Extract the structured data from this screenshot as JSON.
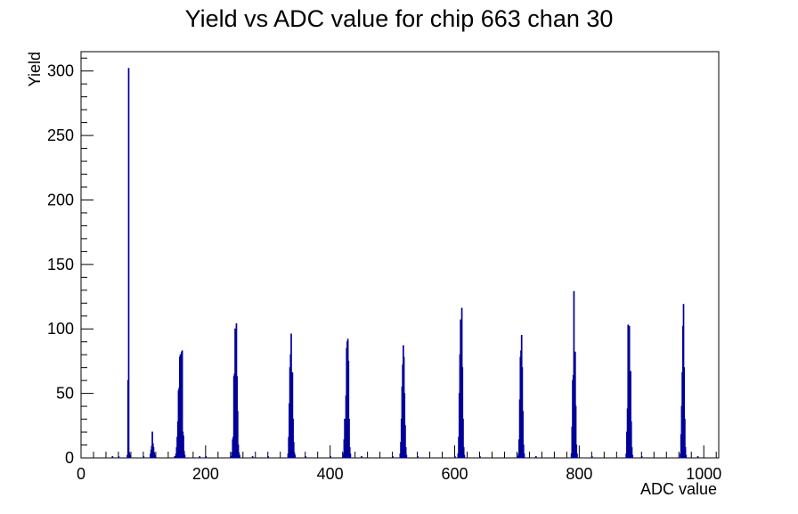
{
  "chart_data": {
    "type": "histogram",
    "title": "Yield vs ADC value for chip 663 chan 30",
    "xlabel": "ADC value",
    "ylabel": "Yield",
    "xlim": [
      0,
      1024
    ],
    "ylim": [
      0,
      315
    ],
    "x_ticks": [
      0,
      200,
      400,
      600,
      800,
      1000
    ],
    "x_tick_labels": [
      "0",
      "200",
      "400",
      "600",
      "800",
      "1000"
    ],
    "y_ticks": [
      0,
      50,
      100,
      150,
      200,
      250,
      300
    ],
    "y_tick_labels": [
      "0",
      "50",
      "100",
      "150",
      "200",
      "250",
      "300"
    ],
    "grid": false,
    "line_color": "#000099",
    "bin_width": 1,
    "bins": [
      [
        50,
        1
      ],
      [
        60,
        1
      ],
      [
        74,
        2
      ],
      [
        75,
        60
      ],
      [
        76,
        302
      ],
      [
        77,
        4
      ],
      [
        78,
        2
      ],
      [
        79,
        1
      ],
      [
        100,
        1
      ],
      [
        111,
        3
      ],
      [
        112,
        6
      ],
      [
        113,
        9
      ],
      [
        114,
        20
      ],
      [
        115,
        11
      ],
      [
        116,
        8
      ],
      [
        117,
        4
      ],
      [
        118,
        2
      ],
      [
        119,
        1
      ],
      [
        150,
        1
      ],
      [
        152,
        3
      ],
      [
        153,
        8
      ],
      [
        154,
        16
      ],
      [
        155,
        28
      ],
      [
        156,
        52
      ],
      [
        157,
        54
      ],
      [
        158,
        78
      ],
      [
        159,
        80
      ],
      [
        160,
        60
      ],
      [
        161,
        82
      ],
      [
        162,
        83
      ],
      [
        163,
        20
      ],
      [
        164,
        17
      ],
      [
        165,
        5
      ],
      [
        166,
        2
      ],
      [
        190,
        1
      ],
      [
        200,
        1
      ],
      [
        240,
        1
      ],
      [
        242,
        4
      ],
      [
        243,
        14
      ],
      [
        244,
        16
      ],
      [
        245,
        63
      ],
      [
        246,
        65
      ],
      [
        247,
        100
      ],
      [
        248,
        70
      ],
      [
        249,
        104
      ],
      [
        250,
        63
      ],
      [
        251,
        36
      ],
      [
        252,
        10
      ],
      [
        253,
        4
      ],
      [
        254,
        2
      ],
      [
        275,
        1
      ],
      [
        300,
        1
      ],
      [
        332,
        3
      ],
      [
        333,
        16
      ],
      [
        334,
        42
      ],
      [
        335,
        70
      ],
      [
        336,
        80
      ],
      [
        337,
        96
      ],
      [
        338,
        60
      ],
      [
        339,
        66
      ],
      [
        340,
        30
      ],
      [
        341,
        12
      ],
      [
        342,
        4
      ],
      [
        343,
        2
      ],
      [
        360,
        1
      ],
      [
        400,
        1
      ],
      [
        421,
        3
      ],
      [
        422,
        14
      ],
      [
        423,
        30
      ],
      [
        424,
        20
      ],
      [
        425,
        48
      ],
      [
        426,
        85
      ],
      [
        427,
        90
      ],
      [
        428,
        92
      ],
      [
        429,
        75
      ],
      [
        430,
        30
      ],
      [
        431,
        8
      ],
      [
        432,
        3
      ],
      [
        450,
        1
      ],
      [
        500,
        1
      ],
      [
        512,
        3
      ],
      [
        513,
        12
      ],
      [
        514,
        30
      ],
      [
        515,
        55
      ],
      [
        516,
        72
      ],
      [
        517,
        87
      ],
      [
        518,
        78
      ],
      [
        519,
        50
      ],
      [
        520,
        25
      ],
      [
        521,
        8
      ],
      [
        522,
        2
      ],
      [
        540,
        1
      ],
      [
        600,
        1
      ],
      [
        605,
        3
      ],
      [
        606,
        16
      ],
      [
        607,
        50
      ],
      [
        608,
        80
      ],
      [
        609,
        107
      ],
      [
        610,
        104
      ],
      [
        611,
        116
      ],
      [
        612,
        70
      ],
      [
        613,
        30
      ],
      [
        614,
        8
      ],
      [
        615,
        2
      ],
      [
        640,
        1
      ],
      [
        700,
        1
      ],
      [
        702,
        3
      ],
      [
        703,
        14
      ],
      [
        704,
        45
      ],
      [
        705,
        78
      ],
      [
        706,
        83
      ],
      [
        707,
        95
      ],
      [
        708,
        70
      ],
      [
        709,
        36
      ],
      [
        710,
        10
      ],
      [
        711,
        3
      ],
      [
        730,
        1
      ],
      [
        787,
        3
      ],
      [
        788,
        24
      ],
      [
        789,
        60
      ],
      [
        790,
        64
      ],
      [
        791,
        129
      ],
      [
        792,
        75
      ],
      [
        793,
        82
      ],
      [
        794,
        40
      ],
      [
        795,
        10
      ],
      [
        796,
        3
      ],
      [
        820,
        1
      ],
      [
        875,
        3
      ],
      [
        876,
        20
      ],
      [
        877,
        38
      ],
      [
        878,
        103
      ],
      [
        879,
        102
      ],
      [
        880,
        102
      ],
      [
        881,
        66
      ],
      [
        882,
        67
      ],
      [
        883,
        28
      ],
      [
        884,
        8
      ],
      [
        885,
        2
      ],
      [
        900,
        1
      ],
      [
        962,
        3
      ],
      [
        963,
        18
      ],
      [
        964,
        40
      ],
      [
        965,
        66
      ],
      [
        966,
        102
      ],
      [
        967,
        119
      ],
      [
        968,
        70
      ],
      [
        969,
        30
      ],
      [
        970,
        8
      ],
      [
        971,
        2
      ],
      [
        990,
        1
      ]
    ]
  }
}
